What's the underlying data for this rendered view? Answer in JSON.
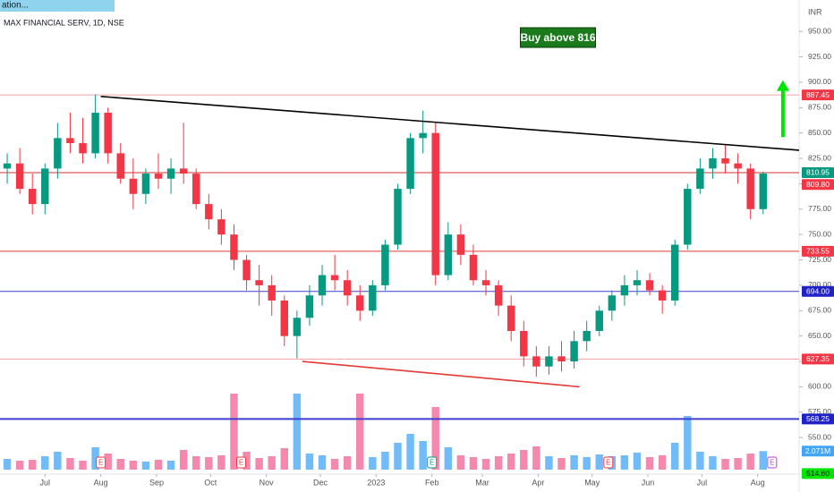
{
  "header": {
    "indicator_tab": "ation...",
    "symbol_info": "MAX FINANCIAL SERV, 1D, NSE",
    "currency": "INR"
  },
  "chart_data": {
    "type": "candlestick",
    "x": [
      -21,
      -14,
      -7,
      0,
      7,
      14,
      21,
      28,
      35,
      42,
      49,
      56,
      63,
      70,
      77,
      84,
      91,
      98,
      105,
      112,
      119,
      126,
      133,
      140,
      147,
      154,
      161,
      168,
      175,
      182,
      189,
      196,
      203,
      210,
      217,
      224,
      231,
      238,
      245,
      252,
      259,
      266,
      273,
      280,
      287,
      294,
      301,
      308,
      315,
      322,
      329,
      336,
      343,
      350,
      357,
      364,
      371,
      378,
      385,
      392,
      399
    ],
    "open": [
      815,
      820,
      795,
      780,
      815,
      845,
      840,
      830,
      870,
      830,
      805,
      790,
      810,
      805,
      815,
      810,
      780,
      765,
      750,
      725,
      705,
      700,
      685,
      650,
      668,
      690,
      710,
      705,
      690,
      675,
      700,
      740,
      795,
      845,
      850,
      710,
      750,
      730,
      705,
      700,
      680,
      655,
      630,
      620,
      630,
      625,
      645,
      655,
      675,
      690,
      700,
      705,
      695,
      685,
      740,
      795,
      815,
      825,
      820,
      815,
      775
    ],
    "high": [
      830,
      835,
      810,
      820,
      860,
      870,
      865,
      888,
      875,
      840,
      825,
      815,
      830,
      825,
      860,
      815,
      790,
      775,
      760,
      730,
      720,
      710,
      690,
      675,
      700,
      720,
      730,
      715,
      700,
      705,
      745,
      800,
      850,
      872,
      860,
      762,
      760,
      740,
      715,
      705,
      690,
      665,
      640,
      640,
      645,
      655,
      665,
      680,
      695,
      710,
      715,
      712,
      700,
      745,
      800,
      825,
      835,
      838,
      830,
      820,
      812
    ],
    "low": [
      800,
      790,
      770,
      770,
      805,
      830,
      820,
      825,
      820,
      800,
      775,
      780,
      795,
      790,
      800,
      775,
      755,
      740,
      715,
      695,
      680,
      670,
      640,
      628,
      660,
      680,
      695,
      680,
      665,
      670,
      695,
      735,
      790,
      830,
      700,
      705,
      720,
      700,
      690,
      670,
      645,
      620,
      610,
      612,
      615,
      618,
      635,
      650,
      665,
      680,
      690,
      690,
      672,
      680,
      735,
      790,
      805,
      810,
      800,
      765,
      770
    ],
    "close": [
      820,
      795,
      780,
      815,
      845,
      840,
      830,
      870,
      830,
      805,
      790,
      810,
      805,
      815,
      810,
      780,
      765,
      750,
      725,
      705,
      700,
      685,
      650,
      668,
      690,
      710,
      705,
      690,
      675,
      700,
      740,
      795,
      845,
      850,
      710,
      750,
      730,
      705,
      700,
      680,
      655,
      630,
      620,
      630,
      625,
      645,
      655,
      675,
      690,
      700,
      705,
      695,
      685,
      740,
      795,
      815,
      825,
      820,
      815,
      775,
      810
    ],
    "up_color": "#089981",
    "down_color": "#f23645",
    "xlim": [
      -25,
      419
    ],
    "xticks": [
      {
        "value": 0,
        "label": "Jul"
      },
      {
        "value": 31,
        "label": "Aug"
      },
      {
        "value": 62,
        "label": "Sep"
      },
      {
        "value": 92,
        "label": "Oct"
      },
      {
        "value": 123,
        "label": "Nov"
      },
      {
        "value": 153,
        "label": "Dec"
      },
      {
        "value": 184,
        "label": "2023"
      },
      {
        "value": 215,
        "label": "Feb"
      },
      {
        "value": 243,
        "label": "Mar"
      },
      {
        "value": 274,
        "label": "Apr"
      },
      {
        "value": 304,
        "label": "May"
      },
      {
        "value": 335,
        "label": "Jun"
      },
      {
        "value": 365,
        "label": "Jul"
      },
      {
        "value": 396,
        "label": "Aug"
      }
    ],
    "ylim": [
      514,
      981
    ],
    "yticks": [
      {
        "value": 550,
        "label": "550.00"
      },
      {
        "value": 575,
        "label": "575.00"
      },
      {
        "value": 600,
        "label": "600.00"
      },
      {
        "value": 625,
        "label": "625.00"
      },
      {
        "value": 650,
        "label": "650.00"
      },
      {
        "value": 675,
        "label": "675.00"
      },
      {
        "value": 700,
        "label": "700.00"
      },
      {
        "value": 725,
        "label": "725.00"
      },
      {
        "value": 750,
        "label": "750.00"
      },
      {
        "value": 775,
        "label": "775.00"
      },
      {
        "value": 800,
        "label": "800.00"
      },
      {
        "value": 825,
        "label": "825.00"
      },
      {
        "value": 850,
        "label": "850.00"
      },
      {
        "value": 875,
        "label": "875.00"
      },
      {
        "value": 900,
        "label": "900.00"
      },
      {
        "value": 925,
        "label": "925.00"
      },
      {
        "value": 950,
        "label": "950.00"
      }
    ],
    "volume": {
      "values": [
        1.2,
        1.0,
        1.1,
        1.5,
        2.0,
        1.3,
        1.0,
        2.5,
        1.8,
        1.2,
        1.0,
        0.9,
        1.1,
        1.0,
        2.2,
        1.5,
        1.4,
        1.6,
        8.5,
        2.0,
        1.3,
        1.5,
        2.4,
        8.5,
        1.8,
        1.6,
        1.2,
        1.5,
        8.5,
        1.4,
        2.0,
        3.0,
        4.0,
        3.2,
        7.0,
        2.5,
        1.6,
        1.4,
        1.2,
        1.5,
        1.8,
        2.2,
        2.6,
        1.5,
        1.3,
        1.6,
        1.4,
        1.7,
        1.5,
        1.6,
        1.9,
        1.4,
        1.6,
        3.0,
        6.0,
        2.0,
        1.5,
        1.2,
        1.3,
        1.8,
        2.071
      ],
      "ylim": [
        0,
        10
      ],
      "up_color": "#42a5f5",
      "down_color": "#f06292",
      "last": {
        "value": 2.071,
        "label": "2.071M",
        "color": "#42a5f5"
      }
    },
    "levels": [
      {
        "value": 887.45,
        "label": "887.45",
        "color": "#f23645",
        "line_color": "#f7a1a1",
        "width": 1
      },
      {
        "value": 810.95,
        "label": "810.95",
        "color": "#089981",
        "line_color": "#d32f2f",
        "width": 1
      },
      {
        "value": 809.8,
        "label": "809.80",
        "color": "#f23645",
        "line_color": "#d32f2f",
        "width": 0
      },
      {
        "value": 733.55,
        "label": "733.55",
        "color": "#f23645",
        "line_color": "#e53935",
        "width": 1
      },
      {
        "value": 694.0,
        "label": "694.00",
        "color": "#2121c8",
        "line_color": "#3f3fd1",
        "width": 1
      },
      {
        "value": 627.35,
        "label": "627.35",
        "color": "#f23645",
        "line_color": "#f7a1a1",
        "width": 1
      },
      {
        "value": 568.25,
        "label": "568.25",
        "color": "#2121c8",
        "line_color": "#3f3fd1",
        "width": 2
      },
      {
        "value": 514.6,
        "label": "514.60",
        "color": "#00e600",
        "line_color": "#00e600",
        "width": 0
      }
    ],
    "trendlines": [
      {
        "x": [
          31,
          419
        ],
        "y": [
          886,
          833
        ],
        "color": "#000000"
      },
      {
        "x": [
          143,
          297
        ],
        "y": [
          625,
          600
        ],
        "color": "#e53935"
      }
    ],
    "annotation": {
      "text": "Buy above 816",
      "x": 285,
      "y": 944
    },
    "arrow": {
      "x": [
        410,
        410
      ],
      "y": [
        846,
        902
      ],
      "color": "#00e600"
    },
    "events": [
      {
        "x": 31,
        "label": "E",
        "color": "#f23645"
      },
      {
        "x": 109,
        "label": "E",
        "color": "#f23645"
      },
      {
        "x": 215,
        "label": "E",
        "color": "#089981"
      },
      {
        "x": 313,
        "label": "E",
        "color": "#f23645"
      },
      {
        "x": 404,
        "label": "E",
        "color": "#b541d6"
      }
    ]
  }
}
